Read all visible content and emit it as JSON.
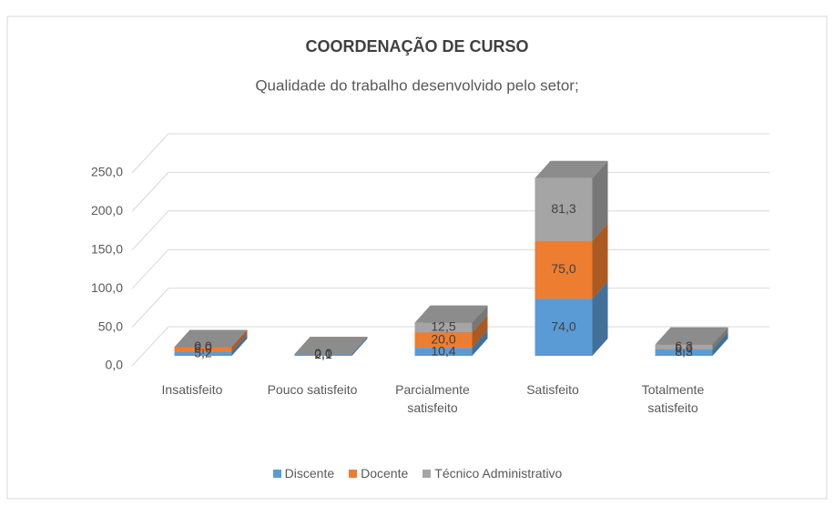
{
  "chart_data": {
    "type": "bar3d_stacked",
    "title": "COORDENAÇÃO DE CURSO",
    "subtitle": "Qualidade do trabalho desenvolvido pelo setor;",
    "categories": [
      "Insatisfeito",
      "Pouco satisfeito",
      "Parcialmente satisfeito",
      "Satisfeito",
      "Totalmente satisfeito"
    ],
    "series": [
      {
        "name": "Discente",
        "color": "#5b9bd5",
        "values": [
          5.2,
          2.1,
          10.4,
          74.0,
          8.3
        ],
        "value_labels": [
          "5,2",
          "2,1",
          "10,4",
          "74,0",
          "8,3"
        ]
      },
      {
        "name": "Docente",
        "color": "#ed7d31",
        "values": [
          6.0,
          0.0,
          20.0,
          75.0,
          0.0
        ],
        "value_labels": [
          "6,0",
          "0,0",
          "20,0",
          "75,0",
          "0,0"
        ]
      },
      {
        "name": "Técnico Administrativo",
        "color": "#a5a5a5",
        "values": [
          0.0,
          0.0,
          12.5,
          81.3,
          6.3
        ],
        "value_labels": [
          "0,0",
          "0,0",
          "12,5",
          "81,3",
          "6,3"
        ]
      }
    ],
    "ylim": [
      0,
      250
    ],
    "yticks": [
      {
        "value": 0,
        "label": "0,0"
      },
      {
        "value": 50,
        "label": "50,0"
      },
      {
        "value": 100,
        "label": "100,0"
      },
      {
        "value": 150,
        "label": "150,0"
      },
      {
        "value": 200,
        "label": "200,0"
      },
      {
        "value": 250,
        "label": "250,0"
      }
    ],
    "grid": true,
    "legend": "bottom"
  }
}
